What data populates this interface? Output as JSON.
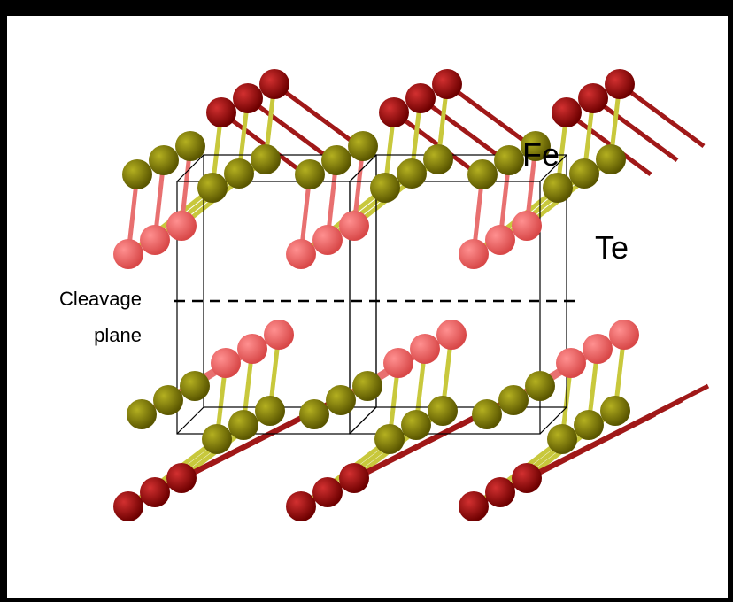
{
  "labels": {
    "fe": "Fe",
    "te": "Te",
    "cleavage_plane": [
      "Cleavage",
      "plane"
    ]
  }
}
